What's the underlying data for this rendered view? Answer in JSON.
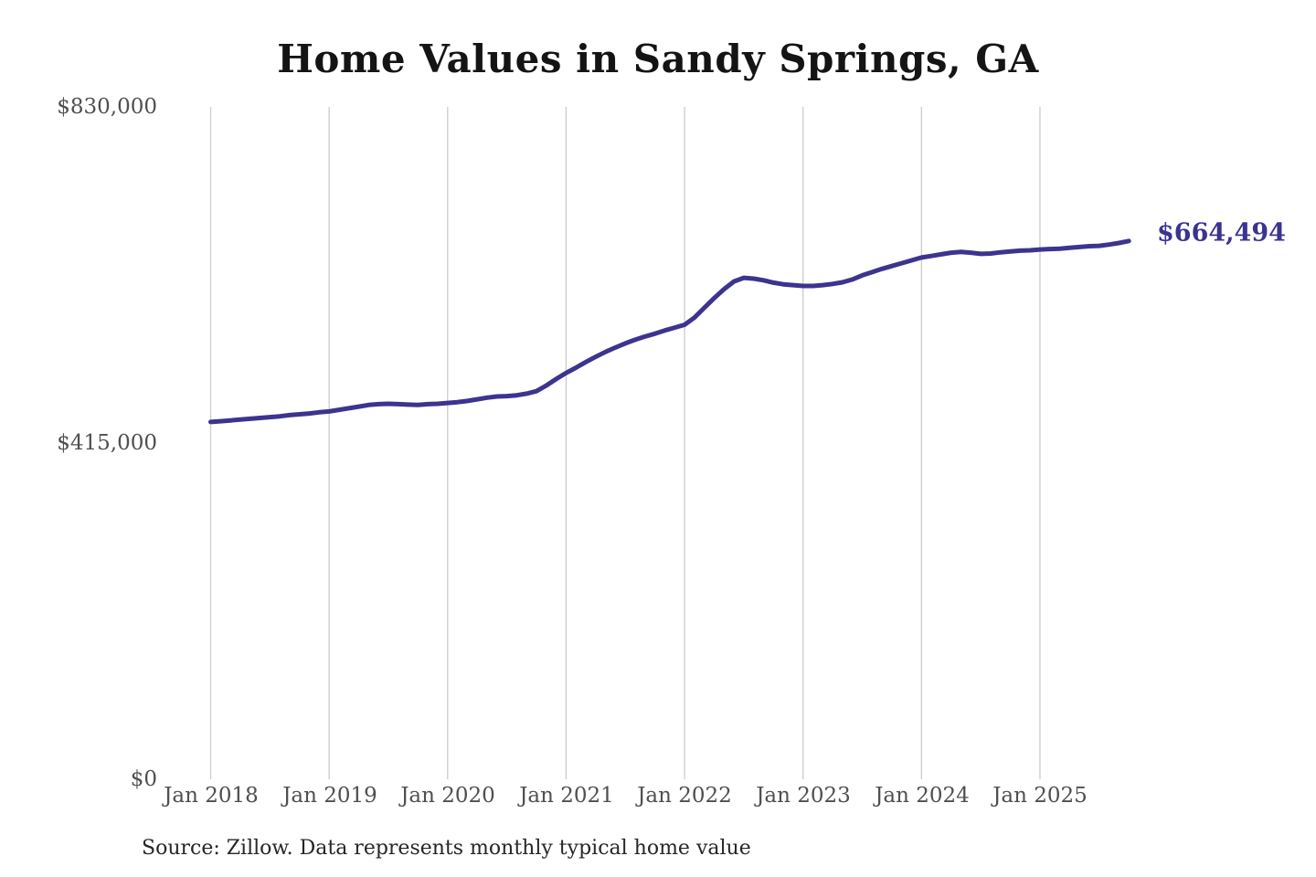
{
  "chart": {
    "title": "Home Values in Sandy Springs, GA",
    "source_note": "Source: Zillow. Data represents monthly typical home value",
    "end_value_label": "$664,494",
    "line_color": "#3c348f",
    "gridline_color": "#cccccc",
    "tick_color": "#4f4f4f"
  },
  "chart_data": {
    "type": "line",
    "title": "Home Values in Sandy Springs, GA",
    "ylabel": "",
    "xlabel": "",
    "ylim": [
      0,
      830000
    ],
    "y_tick_labels": [
      "$830,000",
      "$415,000",
      "$0"
    ],
    "y_tick_values": [
      830000,
      415000,
      0
    ],
    "x_tick_labels": [
      "Jan 2018",
      "Jan 2019",
      "Jan 2020",
      "Jan 2021",
      "Jan 2022",
      "Jan 2023",
      "Jan 2024",
      "Jan 2025"
    ],
    "grid": "vertical-gridlines-only",
    "legend": "none",
    "frequency": "monthly",
    "start_month": "Jan 2018",
    "end_month": "Oct 2025",
    "end_value": 664494,
    "series": [
      {
        "name": "Monthly typical home value",
        "values": [
          441000,
          442000,
          443000,
          444000,
          445000,
          446000,
          447000,
          448000,
          449500,
          450500,
          451500,
          453000,
          454000,
          456000,
          458000,
          460000,
          462000,
          463000,
          463500,
          463000,
          462500,
          462000,
          463000,
          463500,
          464500,
          465500,
          467000,
          469000,
          471000,
          472500,
          473000,
          474000,
          476000,
          479000,
          486000,
          494000,
          501500,
          508000,
          515000,
          521500,
          527500,
          533000,
          538000,
          542500,
          546500,
          550000,
          554000,
          557500,
          561000,
          570000,
          582000,
          594000,
          605000,
          614500,
          619000,
          618000,
          616000,
          613000,
          611000,
          610000,
          609000,
          609000,
          610000,
          611500,
          613500,
          617000,
          622000,
          626000,
          630000,
          633500,
          637000,
          640500,
          644000,
          646000,
          648000,
          650000,
          651000,
          650000,
          648500,
          649000,
          650500,
          651500,
          652500,
          653000,
          654000,
          654500,
          655000,
          656000,
          657000,
          658000,
          658500,
          660000,
          662000,
          664494
        ]
      }
    ],
    "source": "Source: Zillow. Data represents monthly typical home value"
  }
}
